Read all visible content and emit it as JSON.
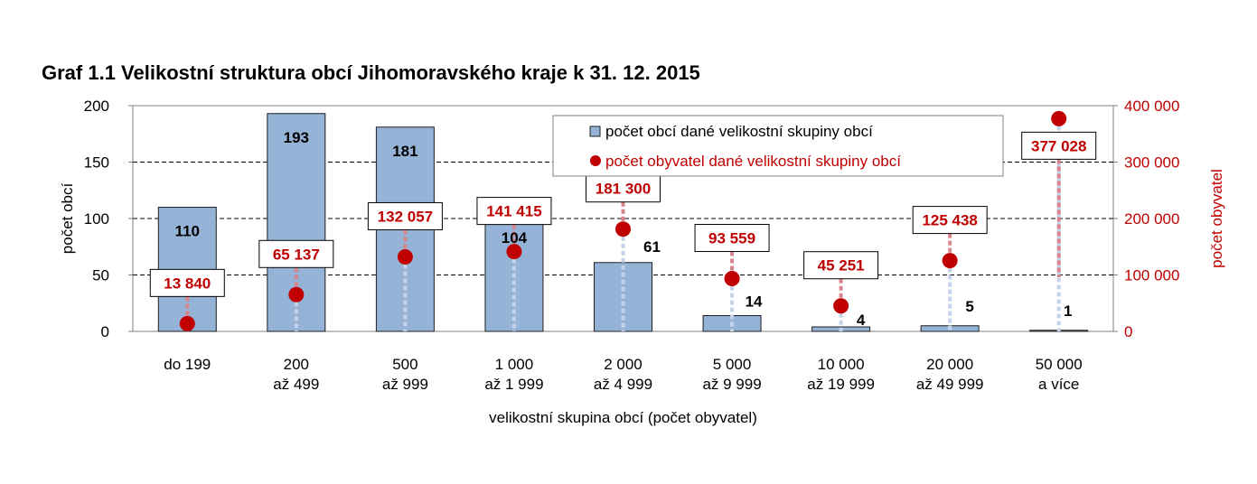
{
  "title": "Graf 1.1 Velikostní struktura obcí Jihomoravského kraje k 31. 12. 2015",
  "colors": {
    "bar_fill": "#95b3d7",
    "bar_stroke": "#1f1f1f",
    "point": "#c00000",
    "right_axis": "#c00000",
    "bar_drop": "#c5d3e8",
    "point_drop": "#d9838a"
  },
  "chart_data": {
    "type": "bar",
    "categories": [
      [
        "do 199"
      ],
      [
        "200",
        "až 499"
      ],
      [
        "500",
        "až 999"
      ],
      [
        "1 000",
        "až 1 999"
      ],
      [
        "2 000",
        "až 4 999"
      ],
      [
        "5 000",
        "až 9 999"
      ],
      [
        "10 000",
        "až 19 999"
      ],
      [
        "20 000",
        "až 49 999"
      ],
      [
        "50 000",
        "a více"
      ]
    ],
    "series": [
      {
        "name": "počet obcí dané velikostní skupiny obcí",
        "type": "bar",
        "axis": "left",
        "values": [
          110,
          193,
          181,
          104,
          61,
          14,
          4,
          5,
          1
        ],
        "labels": [
          "110",
          "193",
          "181",
          "104",
          "61",
          "14",
          "4",
          "5",
          "1"
        ]
      },
      {
        "name": "počet obyvatel dané velikostní skupiny obcí",
        "type": "scatter",
        "axis": "right",
        "values": [
          13840,
          65137,
          132057,
          141415,
          181300,
          93559,
          45251,
          125438,
          377028
        ],
        "labels": [
          "13 840",
          "65 137",
          "132 057",
          "141 415",
          "181 300",
          "93 559",
          "45 251",
          "125 438",
          "377 028"
        ]
      }
    ],
    "xlabel": "velikostní skupina obcí (počet obyvatel)",
    "ylabel": "počet obcí",
    "y2label": "počet obyvatel",
    "ylim": [
      0,
      200
    ],
    "y2lim": [
      0,
      400000
    ],
    "yticks": [
      "0",
      "50",
      "100",
      "150",
      "200"
    ],
    "y2ticks": [
      "0",
      "100 000",
      "200 000",
      "300 000",
      "400 000"
    ],
    "grid": true,
    "legend_position": "top-right"
  }
}
